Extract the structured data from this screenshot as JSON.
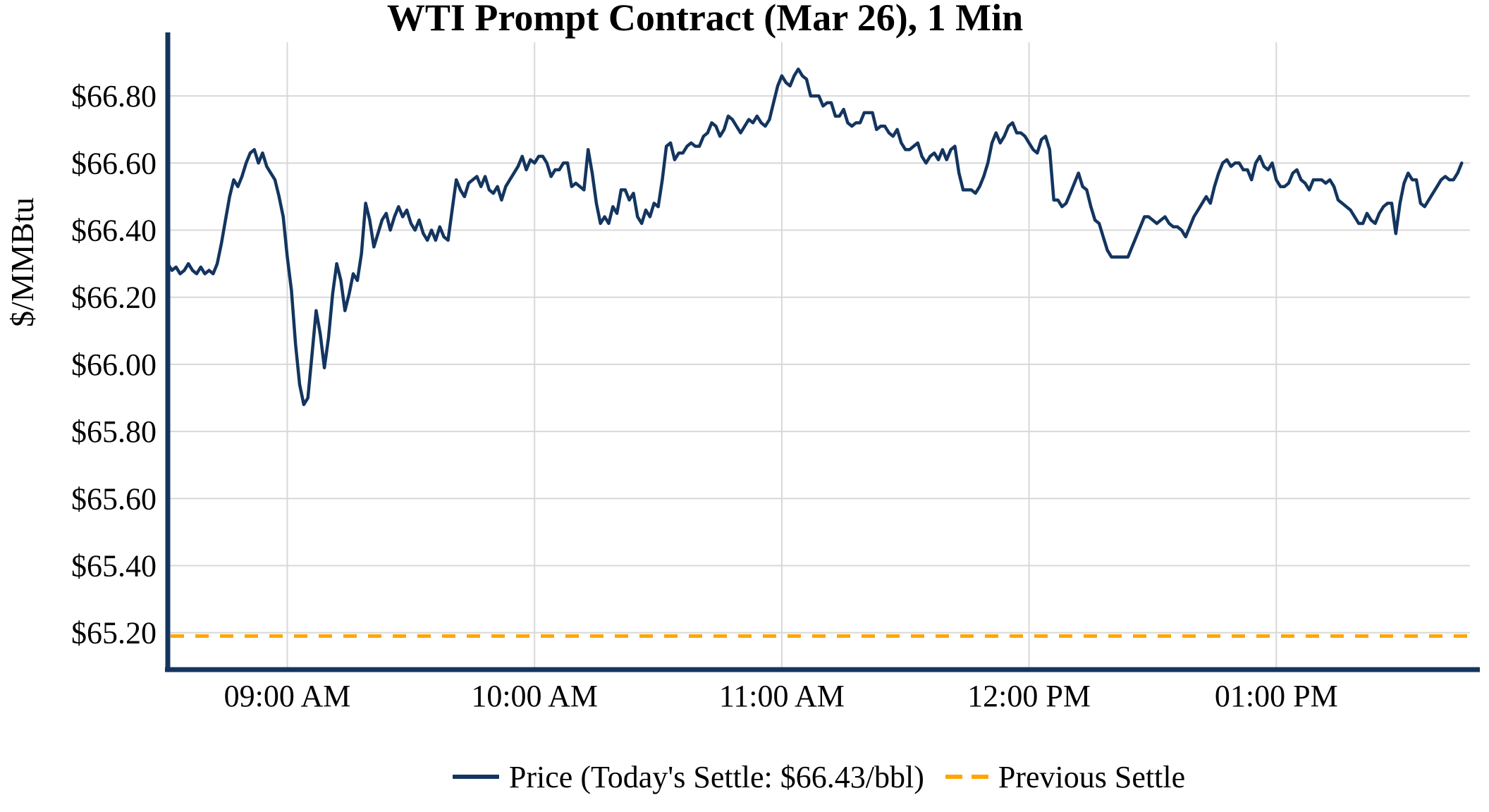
{
  "chart_data": {
    "type": "line",
    "title": "WTI Prompt Contract (Mar 26), 1 Min",
    "ylabel": "$/MMBtu",
    "xlabel": "",
    "grid": true,
    "legend_position": "bottom center",
    "x_domain_hours": [
      8.5167,
      13.7833
    ],
    "y_domain": [
      65.09,
      66.96
    ],
    "x_ticks": [
      {
        "hour": 9,
        "label": "09:00 AM"
      },
      {
        "hour": 10,
        "label": "10:00 AM"
      },
      {
        "hour": 11,
        "label": "11:00 AM"
      },
      {
        "hour": 12,
        "label": "12:00 PM"
      },
      {
        "hour": 13,
        "label": "01:00 PM"
      }
    ],
    "y_ticks": [
      {
        "value": 66.8,
        "label": "$66.80"
      },
      {
        "value": 66.6,
        "label": "$66.60"
      },
      {
        "value": 66.4,
        "label": "$66.40"
      },
      {
        "value": 66.2,
        "label": "$66.20"
      },
      {
        "value": 66.0,
        "label": "$66.00"
      },
      {
        "value": 65.8,
        "label": "$65.80"
      },
      {
        "value": 65.6,
        "label": "$65.60"
      },
      {
        "value": 65.4,
        "label": "$65.40"
      },
      {
        "value": 65.2,
        "label": "$65.20"
      }
    ],
    "todays_settle_usd_bbl": 66.43,
    "previous_settle": 65.19,
    "colors": {
      "price_line": "#13355f",
      "previous_settle_line": "#ffa500",
      "grid": "#d8d8d8",
      "axis": "#13355f",
      "text": "#000000"
    },
    "series": [
      {
        "name": "Price (Today's Settle: $66.43/bbl)",
        "style": "solid",
        "start_time": "08:31 AM",
        "start_hour": 8.5167,
        "interval_minutes": 1,
        "values": [
          66.3,
          66.28,
          66.29,
          66.27,
          66.28,
          66.3,
          66.28,
          66.27,
          66.29,
          66.27,
          66.28,
          66.27,
          66.3,
          66.36,
          66.43,
          66.5,
          66.55,
          66.53,
          66.56,
          66.6,
          66.63,
          66.64,
          66.6,
          66.63,
          66.59,
          66.57,
          66.55,
          66.5,
          66.44,
          66.32,
          66.22,
          66.06,
          65.94,
          65.88,
          65.9,
          66.03,
          66.16,
          66.09,
          65.99,
          66.08,
          66.21,
          66.3,
          66.25,
          66.16,
          66.21,
          66.27,
          66.25,
          66.33,
          66.48,
          66.43,
          66.35,
          66.39,
          66.43,
          66.45,
          66.4,
          66.44,
          66.47,
          66.44,
          66.46,
          66.42,
          66.4,
          66.43,
          66.39,
          66.37,
          66.4,
          66.37,
          66.41,
          66.38,
          66.37,
          66.46,
          66.55,
          66.52,
          66.5,
          66.54,
          66.55,
          66.56,
          66.53,
          66.56,
          66.52,
          66.51,
          66.53,
          66.49,
          66.53,
          66.55,
          66.57,
          66.59,
          66.62,
          66.58,
          66.61,
          66.6,
          66.62,
          66.62,
          66.6,
          66.56,
          66.58,
          66.58,
          66.6,
          66.6,
          66.53,
          66.54,
          66.53,
          66.52,
          66.64,
          66.57,
          66.48,
          66.42,
          66.44,
          66.42,
          66.47,
          66.45,
          66.52,
          66.52,
          66.49,
          66.51,
          66.44,
          66.42,
          66.46,
          66.44,
          66.48,
          66.47,
          66.55,
          66.65,
          66.66,
          66.61,
          66.63,
          66.63,
          66.65,
          66.66,
          66.65,
          66.65,
          66.68,
          66.69,
          66.72,
          66.71,
          66.68,
          66.7,
          66.74,
          66.73,
          66.71,
          66.69,
          66.71,
          66.73,
          66.72,
          66.74,
          66.72,
          66.71,
          66.73,
          66.78,
          66.83,
          66.86,
          66.84,
          66.83,
          66.86,
          66.88,
          66.86,
          66.85,
          66.8,
          66.8,
          66.8,
          66.77,
          66.78,
          66.78,
          66.74,
          66.74,
          66.76,
          66.72,
          66.71,
          66.72,
          66.72,
          66.75,
          66.75,
          66.75,
          66.7,
          66.71,
          66.71,
          66.69,
          66.68,
          66.7,
          66.66,
          66.64,
          66.64,
          66.65,
          66.66,
          66.62,
          66.6,
          66.62,
          66.63,
          66.61,
          66.64,
          66.61,
          66.64,
          66.65,
          66.57,
          66.52,
          66.52,
          66.52,
          66.51,
          66.53,
          66.56,
          66.6,
          66.66,
          66.69,
          66.66,
          66.68,
          66.71,
          66.72,
          66.69,
          66.69,
          66.68,
          66.66,
          66.64,
          66.63,
          66.67,
          66.68,
          66.64,
          66.49,
          66.49,
          66.47,
          66.48,
          66.51,
          66.54,
          66.57,
          66.53,
          66.52,
          66.47,
          66.43,
          66.42,
          66.38,
          66.34,
          66.32,
          66.32,
          66.32,
          66.32,
          66.32,
          66.35,
          66.38,
          66.41,
          66.44,
          66.44,
          66.43,
          66.42,
          66.43,
          66.44,
          66.42,
          66.41,
          66.41,
          66.4,
          66.38,
          66.41,
          66.44,
          66.46,
          66.48,
          66.5,
          66.48,
          66.53,
          66.57,
          66.6,
          66.61,
          66.59,
          66.6,
          66.6,
          66.58,
          66.58,
          66.55,
          66.6,
          66.62,
          66.59,
          66.58,
          66.6,
          66.55,
          66.53,
          66.53,
          66.54,
          66.57,
          66.58,
          66.55,
          66.54,
          66.52,
          66.55,
          66.55,
          66.55,
          66.54,
          66.55,
          66.53,
          66.49,
          66.48,
          66.47,
          66.46,
          66.44,
          66.42,
          66.42,
          66.45,
          66.43,
          66.42,
          66.45,
          66.47,
          66.48,
          66.48,
          66.39,
          66.48,
          66.54,
          66.57,
          66.55,
          66.55,
          66.48,
          66.47,
          66.49,
          66.51,
          66.53,
          66.55,
          66.56,
          66.55,
          66.55,
          66.57,
          66.6
        ]
      },
      {
        "name": "Previous Settle",
        "style": "dashed",
        "constant_value": 65.19
      }
    ]
  }
}
